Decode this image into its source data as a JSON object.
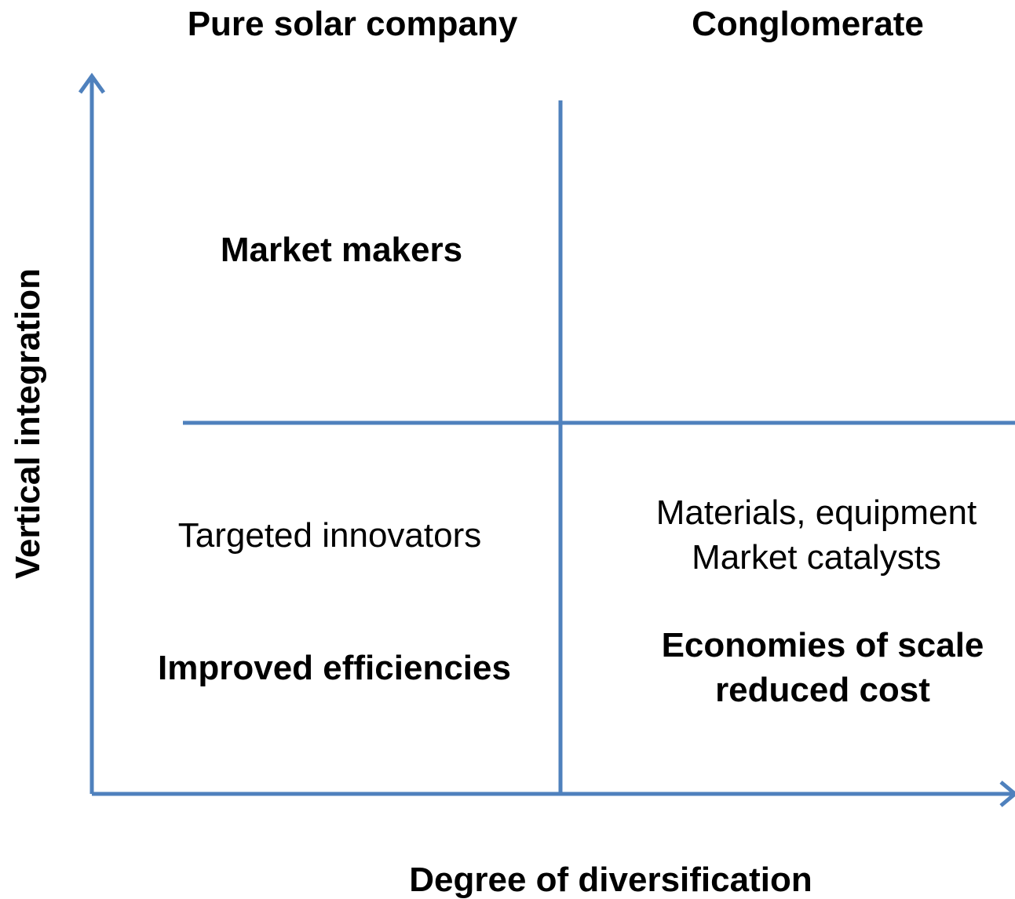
{
  "header": {
    "left": "Pure solar company",
    "right": "Conglomerate"
  },
  "axes": {
    "y": "Vertical integration",
    "x": "Degree of diversification"
  },
  "quadrants": {
    "top_left": "Market makers",
    "bottom_left": {
      "lines": [
        "Targeted innovators"
      ],
      "emphasis": "Improved efficiencies"
    },
    "bottom_right": {
      "lines": [
        "Materials, equipment",
        "Market catalysts"
      ],
      "emphasis": [
        "Economies of scale",
        "reduced cost"
      ]
    }
  }
}
